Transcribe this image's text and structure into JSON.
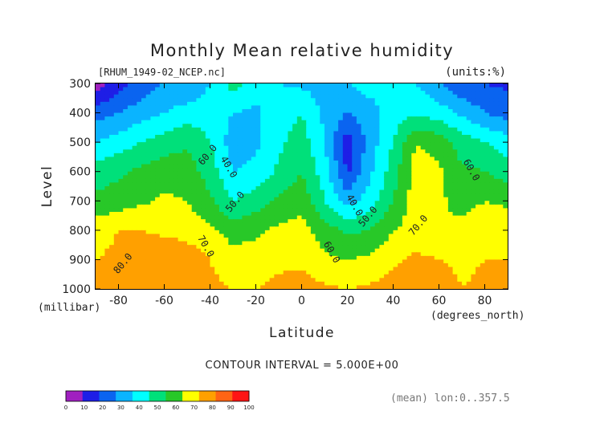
{
  "chart_data": {
    "type": "heatmap",
    "subtype": "filled-contour",
    "title": "Monthly Mean relative humidity",
    "file_label": "[RHUM_1949-02_NCEP.nc]",
    "units_label": "(units:%)",
    "xlabel": "Latitude",
    "x_unit_label": "(degrees_north)",
    "ylabel": "Level",
    "y_unit_label": "(millibar)",
    "xlim": [
      -90,
      90
    ],
    "ylim": [
      1000,
      300
    ],
    "x_ticks": [
      -80,
      -60,
      -40,
      -20,
      0,
      20,
      40,
      60,
      80
    ],
    "y_ticks": [
      300,
      400,
      500,
      600,
      700,
      800,
      900,
      1000
    ],
    "x_tick_labels": [
      "-80",
      "-60",
      "-40",
      "-20",
      "0",
      "20",
      "40",
      "60",
      "80"
    ],
    "y_tick_labels": [
      "300",
      "400",
      "500",
      "600",
      "700",
      "800",
      "900",
      "1000"
    ],
    "contour_interval_text": "CONTOUR INTERVAL = 5.000E+00",
    "contour_interval": 5,
    "contour_labels": [
      {
        "text": "60.0",
        "lat": -40,
        "lev": 550
      },
      {
        "text": "40.0",
        "lat": -33,
        "lev": 590
      },
      {
        "text": "50.0",
        "lat": -28,
        "lev": 710
      },
      {
        "text": "70.0",
        "lat": -43,
        "lev": 860
      },
      {
        "text": "80.0",
        "lat": -77,
        "lev": 920
      },
      {
        "text": "40.0",
        "lat": 22,
        "lev": 720
      },
      {
        "text": "50.0",
        "lat": 30,
        "lev": 760
      },
      {
        "text": "60.0",
        "lat": 12,
        "lev": 880
      },
      {
        "text": "70.0",
        "lat": 52,
        "lev": 790
      },
      {
        "text": "60.0",
        "lat": 73,
        "lev": 600
      }
    ],
    "colorbar": {
      "ticks": [
        "0",
        "10",
        "20",
        "30",
        "40",
        "50",
        "60",
        "70",
        "80",
        "90",
        "100"
      ],
      "colors": [
        "#a020c0",
        "#1e1ee6",
        "#0a64f0",
        "#0ab4ff",
        "#00ffff",
        "#00e07a",
        "#28c828",
        "#ffff00",
        "#ffa000",
        "#ff6414",
        "#ff1414"
      ]
    },
    "mean_label": "(mean) lon:0..357.5",
    "levels": [
      300,
      400,
      500,
      600,
      700,
      800,
      900,
      1000
    ],
    "lats": [
      -90,
      -80,
      -70,
      -60,
      -50,
      -40,
      -30,
      -20,
      -10,
      0,
      10,
      20,
      30,
      40,
      50,
      60,
      70,
      80,
      90
    ],
    "values": [
      [
        5,
        15,
        25,
        30,
        30,
        40,
        55,
        45,
        40,
        38,
        35,
        40,
        45,
        45,
        40,
        30,
        22,
        20,
        18
      ],
      [
        25,
        30,
        35,
        40,
        45,
        45,
        40,
        38,
        45,
        50,
        38,
        30,
        35,
        45,
        48,
        45,
        38,
        30,
        25
      ],
      [
        40,
        45,
        50,
        55,
        58,
        50,
        35,
        38,
        48,
        55,
        40,
        15,
        35,
        50,
        70,
        65,
        55,
        50,
        45
      ],
      [
        55,
        58,
        62,
        66,
        65,
        55,
        40,
        42,
        52,
        60,
        45,
        18,
        38,
        55,
        75,
        72,
        62,
        60,
        55
      ],
      [
        62,
        65,
        68,
        72,
        70,
        62,
        50,
        55,
        62,
        66,
        50,
        35,
        45,
        60,
        75,
        72,
        66,
        70,
        68
      ],
      [
        76,
        80,
        80,
        78,
        76,
        72,
        65,
        68,
        72,
        74,
        65,
        58,
        60,
        70,
        74,
        70,
        74,
        76,
        77
      ],
      [
        80,
        82,
        85,
        88,
        86,
        80,
        75,
        75,
        78,
        78,
        72,
        70,
        72,
        78,
        82,
        80,
        78,
        80,
        80
      ],
      [
        85,
        88,
        90,
        88,
        86,
        82,
        80,
        80,
        82,
        84,
        82,
        80,
        82,
        84,
        88,
        85,
        80,
        82,
        84
      ]
    ]
  }
}
